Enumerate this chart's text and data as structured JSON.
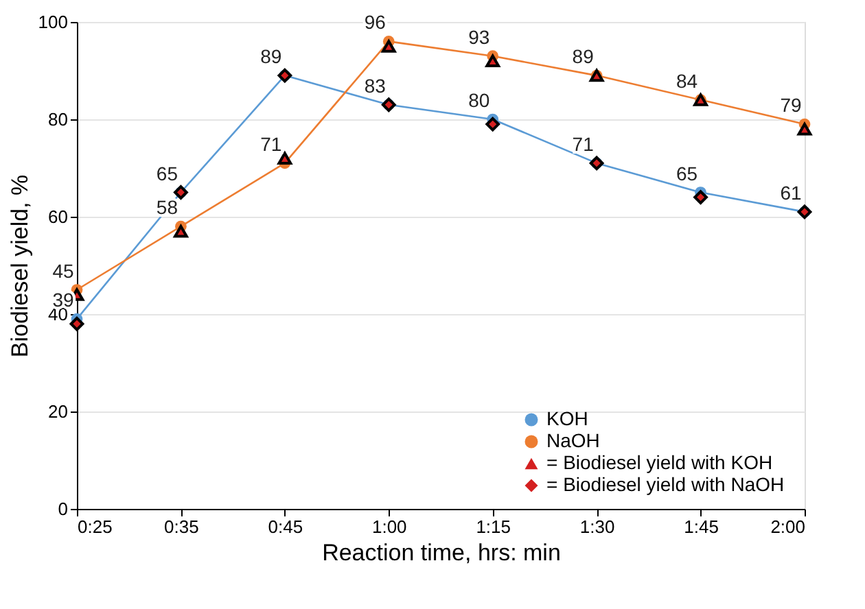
{
  "chart_data": {
    "type": "line",
    "xlabel": "Reaction time, hrs: min",
    "ylabel": "Biodiesel yield, %",
    "categories": [
      "0:25",
      "0:35",
      "0:45",
      "1:00",
      "1:15",
      "1:30",
      "1:45",
      "2:00"
    ],
    "ylim": [
      0,
      100
    ],
    "yticks": [
      0,
      20,
      40,
      60,
      80,
      100
    ],
    "grid": "y",
    "legend": "bottom right",
    "series": [
      {
        "name": "KOH",
        "marker": "circle",
        "color": "#5b9bd5",
        "values": [
          39,
          65,
          89,
          83,
          80,
          71,
          65,
          61
        ],
        "value_labels": [
          "39",
          "65",
          "89",
          "83",
          "80",
          "71",
          "65",
          "61"
        ]
      },
      {
        "name": "NaOH",
        "marker": "circle",
        "color": "#ed7d31",
        "values": [
          45,
          58,
          71,
          96,
          93,
          89,
          84,
          79
        ],
        "value_labels": [
          "45",
          "58",
          "71",
          "96",
          "93",
          "89",
          "84",
          "79"
        ]
      },
      {
        "name": "= Biodiesel yield with KOH",
        "type": "scatter",
        "marker": "triangle",
        "color": "#d42020",
        "x": [
          "0:25",
          "0:35",
          "0:45",
          "1:00",
          "1:15",
          "1:30",
          "1:45",
          "2:00"
        ],
        "values": [
          44,
          57,
          72,
          95,
          92,
          89,
          84,
          78
        ]
      },
      {
        "name": "= Biodiesel yield with  NaOH",
        "type": "scatter",
        "marker": "diamond",
        "color": "#d42020",
        "x": [
          "0:25",
          "0:35",
          "0:45",
          "1:00",
          "1:15",
          "1:30",
          "1:45",
          "2:00"
        ],
        "values": [
          38,
          65,
          89,
          83,
          79,
          71,
          64,
          61
        ]
      }
    ]
  }
}
